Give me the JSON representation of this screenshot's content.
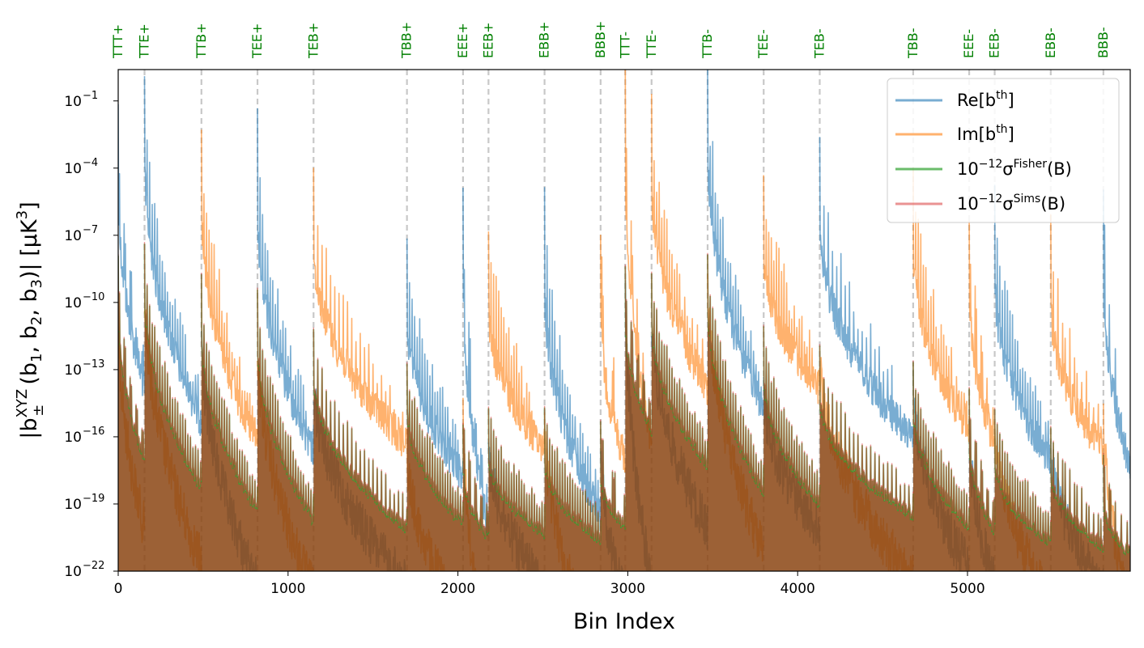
{
  "chart_data": {
    "type": "line",
    "xlabel": "Bin Index",
    "ylabel_parts": {
      "open": "|b",
      "sup": "XYZ",
      "sub": "±",
      "args": "(b",
      "a1": "1",
      "comma1": ", b",
      "a2": "2",
      "comma2": ", b",
      "a3": "3",
      "close": ")| [μK",
      "unit_sup": "3",
      "end": "]"
    },
    "xlim": [
      0,
      5958
    ],
    "ylim_exp": [
      -22,
      0.4
    ],
    "xticks": [
      0,
      1000,
      2000,
      3000,
      4000,
      5000
    ],
    "yticks": [
      {
        "exp": -22,
        "label": "10",
        "sup": "−22"
      },
      {
        "exp": -19,
        "label": "10",
        "sup": "−19"
      },
      {
        "exp": -16,
        "label": "10",
        "sup": "−16"
      },
      {
        "exp": -13,
        "label": "10",
        "sup": "−13"
      },
      {
        "exp": -10,
        "label": "10",
        "sup": "−10"
      },
      {
        "exp": -7,
        "label": "10",
        "sup": "−7"
      },
      {
        "exp": -4,
        "label": "10",
        "sup": "−4"
      },
      {
        "exp": -1,
        "label": "10",
        "sup": "−1"
      }
    ],
    "blocks": [
      {
        "label": "TTT+",
        "start": 0,
        "end": 155,
        "dom": "re",
        "peak": -3.5,
        "tail": -13.0,
        "errTop": -10.5,
        "errBot": -17.4
      },
      {
        "label": "TTE+",
        "start": 155,
        "end": 490,
        "dom": "re",
        "peak": -2.2,
        "tail": -14.5,
        "errTop": -9.8,
        "errBot": -18.6
      },
      {
        "label": "TTB+",
        "start": 490,
        "end": 820,
        "dom": "im",
        "peak": -4.2,
        "tail": -15.5,
        "errTop": -11.5,
        "errBot": -19.6
      },
      {
        "label": "TEE+",
        "start": 820,
        "end": 1150,
        "dom": "re",
        "peak": -4.6,
        "tail": -15.8,
        "errTop": -11.9,
        "errBot": -20.0
      },
      {
        "label": "TEB+",
        "start": 1150,
        "end": 1700,
        "dom": "im",
        "peak": -6.3,
        "tail": -15.5,
        "errTop": -13.5,
        "errBot": -20.4
      },
      {
        "label": "TBB+",
        "start": 1700,
        "end": 2030,
        "dom": "re",
        "peak": -9.4,
        "tail": -16.9,
        "errTop": -15.0,
        "errBot": -20.2
      },
      {
        "label": "EEE+",
        "start": 2030,
        "end": 2180,
        "dom": "re",
        "peak": -7.3,
        "tail": -19.3,
        "errTop": -17.7,
        "errBot": -20.8
      },
      {
        "label": "EEB+",
        "start": 2180,
        "end": 2510,
        "dom": "im",
        "peak": -9.1,
        "tail": -15.7,
        "errTop": -17.2,
        "errBot": -20.6
      },
      {
        "label": "EBB+",
        "start": 2510,
        "end": 2840,
        "dom": "re",
        "peak": -8.1,
        "tail": -18.7,
        "errTop": -17.3,
        "errBot": -20.9
      },
      {
        "label": "BBB+",
        "start": 2840,
        "end": 2985,
        "dom": "im",
        "peak": -9.2,
        "tail": -16.2,
        "errTop": -18.0,
        "errBot": -20.3
      },
      {
        "label": "TTT-",
        "start": 2985,
        "end": 3140,
        "dom": "im",
        "peak": -2.0,
        "tail": -15.5,
        "errTop": -11.0,
        "errBot": -16.0
      },
      {
        "label": "TTE-",
        "start": 3140,
        "end": 3470,
        "dom": "im",
        "peak": -3.5,
        "tail": -13.0,
        "errTop": -11.0,
        "errBot": -17.6
      },
      {
        "label": "TTB-",
        "start": 3470,
        "end": 3800,
        "dom": "re",
        "peak": -1.8,
        "tail": -14.0,
        "errTop": -10.2,
        "errBot": -18.8
      },
      {
        "label": "TEE-",
        "start": 3800,
        "end": 4130,
        "dom": "im",
        "peak": -6.8,
        "tail": -13.0,
        "errTop": -13.5,
        "errBot": -19.3
      },
      {
        "label": "TEB-",
        "start": 4130,
        "end": 4680,
        "dom": "re",
        "peak": -5.2,
        "tail": -15.3,
        "errTop": -14.5,
        "errBot": -19.8
      },
      {
        "label": "TBB-",
        "start": 4680,
        "end": 5010,
        "dom": "im",
        "peak": -6.5,
        "tail": -14.8,
        "errTop": -15.0,
        "errBot": -20.3
      },
      {
        "label": "EEE-",
        "start": 5010,
        "end": 5160,
        "dom": "im",
        "peak": -8.3,
        "tail": -15.5,
        "errTop": -16.5,
        "errBot": -20.5
      },
      {
        "label": "EEB-",
        "start": 5160,
        "end": 5490,
        "dom": "re",
        "peak": -7.8,
        "tail": -16.3,
        "errTop": -17.3,
        "errBot": -21.0
      },
      {
        "label": "EBB-",
        "start": 5490,
        "end": 5800,
        "dom": "im",
        "peak": -9.0,
        "tail": -15.8,
        "errTop": -17.8,
        "errBot": -21.2
      },
      {
        "label": "BBB-",
        "start": 5800,
        "end": 5958,
        "dom": "re",
        "peak": -7.5,
        "tail": -16.5,
        "errTop": -19.2,
        "errBot": -21.5
      }
    ],
    "series": [
      {
        "name": "Re",
        "latex_main": "Re[b",
        "sup": "th",
        "tail": "]",
        "color": "#1f77b4",
        "alpha": 0.6
      },
      {
        "name": "Im",
        "latex_main": "Im[b",
        "sup": "th",
        "tail": "]",
        "color": "#ff7f0e",
        "alpha": 0.6
      },
      {
        "name": "Fisher",
        "latex_main": "10",
        "pow": "−12",
        "sigma": "σ",
        "sup": "Fisher",
        "tail": "(B)",
        "color": "#2ca02c",
        "alpha": 0.7
      },
      {
        "name": "Sims",
        "latex_main": "10",
        "pow": "−12",
        "sigma": "σ",
        "sup": "Sims",
        "tail": "(B)",
        "color": "#d62728",
        "alpha": 0.5
      }
    ],
    "legend_position": "top-right",
    "separator_color": "#c8c8c8",
    "error_fill_color": "#8b4513"
  }
}
